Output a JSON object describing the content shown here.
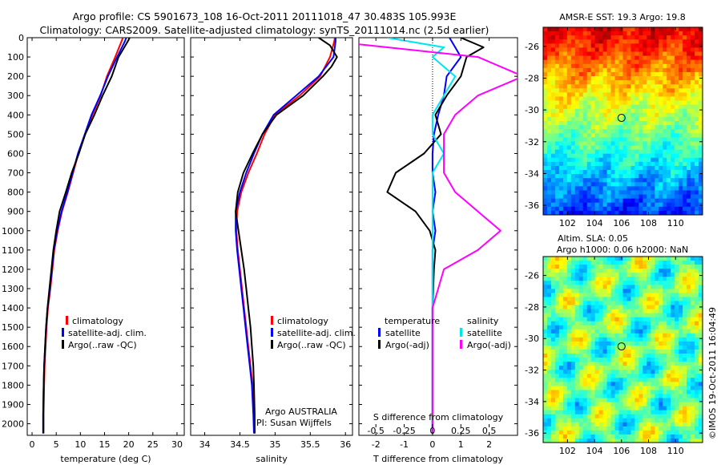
{
  "title": {
    "line1": "Argo profile: CS 5901673_108 16-Oct-2011 20111018_47 30.483S 105.993E",
    "line2": "Climatology: CARS2009. Satellite-adjusted climatology: synTS_20111014.nc (2.5d earlier)"
  },
  "colors": {
    "climatology": "#ff0000",
    "satellite": "#0000ff",
    "argo": "#000000",
    "salinity_satellite": "#00e5ee",
    "salinity_argo": "#ff00ff"
  },
  "depth_axis": {
    "ticks": [
      "0",
      "100",
      "200",
      "300",
      "400",
      "500",
      "600",
      "700",
      "800",
      "900",
      "1000",
      "1100",
      "1200",
      "1300",
      "1400",
      "1500",
      "1600",
      "1700",
      "1800",
      "1900",
      "2000"
    ]
  },
  "chart_data": [
    {
      "type": "line",
      "id": "temperature",
      "xlabel": "temperature (deg C)",
      "xlim": [
        -1,
        31.5
      ],
      "ylim": [
        2060,
        0
      ],
      "xticks": [
        "0",
        "5",
        "10",
        "15",
        "20",
        "25",
        "30"
      ],
      "legend": [
        "climatology",
        "satellite-adj. clim.",
        "Argo(..raw -QC)"
      ],
      "series": [
        {
          "name": "climatology",
          "x": [
            18.8,
            18.5,
            17.2,
            15.5,
            14.2,
            12.5,
            11.0,
            9.6,
            8.5,
            7.4,
            6.2,
            5.3,
            4.6,
            4.2,
            3.8,
            3.3,
            3.0,
            2.8,
            2.6,
            2.5,
            2.4,
            2.4
          ],
          "y": [
            0,
            20,
            100,
            200,
            300,
            400,
            500,
            600,
            700,
            800,
            900,
            1000,
            1100,
            1200,
            1300,
            1400,
            1500,
            1600,
            1700,
            1800,
            1950,
            2050
          ]
        },
        {
          "name": "satellite-adj. clim.",
          "x": [
            19.5,
            19.2,
            17.6,
            15.7,
            14.1,
            12.3,
            10.9,
            9.5,
            8.4,
            7.3,
            6.1,
            5.2,
            4.5,
            4.1,
            3.7,
            3.2,
            2.9,
            2.7,
            2.5,
            2.4,
            2.3,
            2.3
          ],
          "y": [
            0,
            20,
            100,
            200,
            300,
            400,
            500,
            600,
            700,
            800,
            900,
            1000,
            1100,
            1200,
            1300,
            1400,
            1500,
            1600,
            1700,
            1800,
            1950,
            2050
          ]
        },
        {
          "name": "Argo(..raw -QC)",
          "x": [
            20.2,
            19.8,
            17.9,
            16.5,
            14.6,
            12.9,
            11.0,
            9.7,
            8.2,
            7.0,
            5.7,
            5.0,
            4.4,
            4.0,
            3.6,
            3.2,
            2.9,
            2.7,
            2.5,
            2.4,
            2.3,
            2.3
          ],
          "y": [
            0,
            20,
            100,
            200,
            300,
            400,
            500,
            600,
            700,
            800,
            900,
            1000,
            1100,
            1200,
            1300,
            1400,
            1500,
            1600,
            1700,
            1800,
            1950,
            2050
          ]
        }
      ]
    },
    {
      "type": "line",
      "id": "salinity",
      "xlabel": "salinity",
      "xlim": [
        33.8,
        36.1
      ],
      "ylim": [
        2060,
        0
      ],
      "xticks": [
        "34",
        "34.5",
        "35",
        "35.5",
        "36"
      ],
      "legend": [
        "climatology",
        "satellite-adj. clim.",
        "Argo(..raw -QC)"
      ],
      "annotation": [
        "Argo AUSTRALIA",
        "PI: Susan Wijffels"
      ],
      "series": [
        {
          "name": "climatology",
          "x": [
            35.85,
            35.84,
            35.78,
            35.64,
            35.35,
            35.0,
            34.85,
            34.74,
            34.62,
            34.52,
            34.46,
            34.45,
            34.47,
            34.5,
            34.53,
            34.56,
            34.59,
            34.62,
            34.65,
            34.68,
            34.7,
            34.71
          ],
          "y": [
            0,
            20,
            100,
            200,
            300,
            400,
            500,
            600,
            700,
            800,
            900,
            1000,
            1100,
            1200,
            1300,
            1400,
            1500,
            1600,
            1700,
            1800,
            1950,
            2050
          ]
        },
        {
          "name": "satellite-adj. clim.",
          "x": [
            35.86,
            35.86,
            35.83,
            35.62,
            35.3,
            34.98,
            34.82,
            34.7,
            34.59,
            34.5,
            34.44,
            34.44,
            34.46,
            34.49,
            34.52,
            34.55,
            34.58,
            34.61,
            34.64,
            34.67,
            34.69,
            34.7
          ],
          "y": [
            0,
            20,
            100,
            200,
            300,
            400,
            500,
            600,
            700,
            800,
            900,
            1000,
            1100,
            1200,
            1300,
            1400,
            1500,
            1600,
            1700,
            1800,
            1950,
            2050
          ]
        },
        {
          "name": "Argo(..raw -QC)",
          "x": [
            35.62,
            35.78,
            35.88,
            35.8,
            35.68,
            35.4,
            35.02,
            34.82,
            34.68,
            34.55,
            34.47,
            34.44,
            34.48,
            34.52,
            34.56,
            34.59,
            34.62,
            34.65,
            34.67,
            34.69,
            34.7,
            34.71,
            34.71
          ],
          "y": [
            0,
            40,
            100,
            150,
            200,
            300,
            400,
            500,
            600,
            700,
            800,
            900,
            1000,
            1100,
            1200,
            1300,
            1400,
            1500,
            1600,
            1700,
            1800,
            1950,
            2050
          ]
        }
      ]
    },
    {
      "type": "line",
      "id": "differences",
      "xlabel": "T difference from climatology",
      "xlabel_top": "S difference from climatology",
      "xlim": [
        -2.6,
        3.0
      ],
      "ylim": [
        2060,
        0
      ],
      "xticks": [
        "-2",
        "-1",
        "0",
        "1",
        "2"
      ],
      "xticks_top": [
        "-0.5",
        "-0.25",
        "0",
        "0.25",
        "0.5"
      ],
      "legend_titles": [
        "temperature",
        "salinity"
      ],
      "legend": [
        "satellite",
        "Argo(-adj)",
        "satellite",
        "Argo(-adj)"
      ],
      "series": [
        {
          "name": "satellite",
          "x": [
            0.6,
            0.8,
            1.0,
            0.5,
            0.4,
            0.2,
            0.05,
            0.0,
            0.0,
            0.1,
            0.0,
            0.1,
            0.0,
            0.0,
            0.0,
            0.0,
            0.0,
            0.0,
            0.0
          ],
          "y": [
            0,
            50,
            100,
            200,
            300,
            400,
            500,
            600,
            700,
            800,
            900,
            1000,
            1100,
            1200,
            1400,
            1600,
            1800,
            1950,
            2050
          ]
        },
        {
          "name": "Argo(-adj)",
          "x": [
            1.0,
            1.8,
            1.2,
            1.0,
            0.5,
            0.1,
            0.3,
            -0.3,
            -1.3,
            -1.6,
            -0.6,
            -0.1,
            0.1,
            0.05,
            0.0,
            0.0,
            0.0,
            0.0,
            0.0
          ],
          "y": [
            0,
            50,
            100,
            200,
            300,
            400,
            500,
            600,
            700,
            800,
            900,
            1000,
            1100,
            1200,
            1400,
            1600,
            1800,
            1950,
            2050
          ]
        },
        {
          "name": "satellite",
          "x": [
            -0.4,
            0.1,
            0.0,
            0.2,
            0.1,
            0.0,
            0.0,
            0.1,
            0.0,
            0.0,
            0.0,
            0.0,
            0.0,
            0.0,
            0.0,
            0.0,
            0.0
          ],
          "y": [
            0,
            50,
            100,
            200,
            300,
            400,
            500,
            600,
            700,
            800,
            900,
            1000,
            1200,
            1400,
            1600,
            1800,
            2050
          ]
        },
        {
          "name": "Argo(-adj)",
          "x": [
            -1.2,
            -0.4,
            0.4,
            0.8,
            0.4,
            0.2,
            0.1,
            0.1,
            0.1,
            0.2,
            0.4,
            0.6,
            0.4,
            0.1,
            0.0,
            0.0,
            0.0
          ],
          "y": [
            0,
            50,
            100,
            200,
            300,
            400,
            500,
            600,
            700,
            800,
            900,
            1000,
            1100,
            1200,
            1400,
            1700,
            2050
          ]
        }
      ]
    },
    {
      "type": "heatmap",
      "id": "sst-map",
      "title": "AMSR-E SST: 19.3 Argo: 19.8",
      "xlim": [
        100.2,
        112
      ],
      "ylim": [
        -36.6,
        -24.8
      ],
      "xticks": [
        "102",
        "104",
        "106",
        "108",
        "110"
      ],
      "yticks": [
        "-26",
        "-28",
        "-30",
        "-32",
        "-34",
        "-36"
      ],
      "marker": {
        "x": 106.0,
        "y": -30.5
      }
    },
    {
      "type": "heatmap",
      "id": "sla-map",
      "title_line1": "Altim. SLA: 0.05",
      "title_line2": "Argo h1000: 0.06 h2000: NaN",
      "xlim": [
        100.2,
        112
      ],
      "ylim": [
        -36.6,
        -24.8
      ],
      "xticks": [
        "102",
        "104",
        "106",
        "108",
        "110"
      ],
      "yticks": [
        "-26",
        "-28",
        "-30",
        "-32",
        "-34",
        "-36"
      ],
      "marker": {
        "x": 106.0,
        "y": -30.5
      }
    }
  ],
  "footer": "©IMOS 19-Oct-2011 16:04:49"
}
